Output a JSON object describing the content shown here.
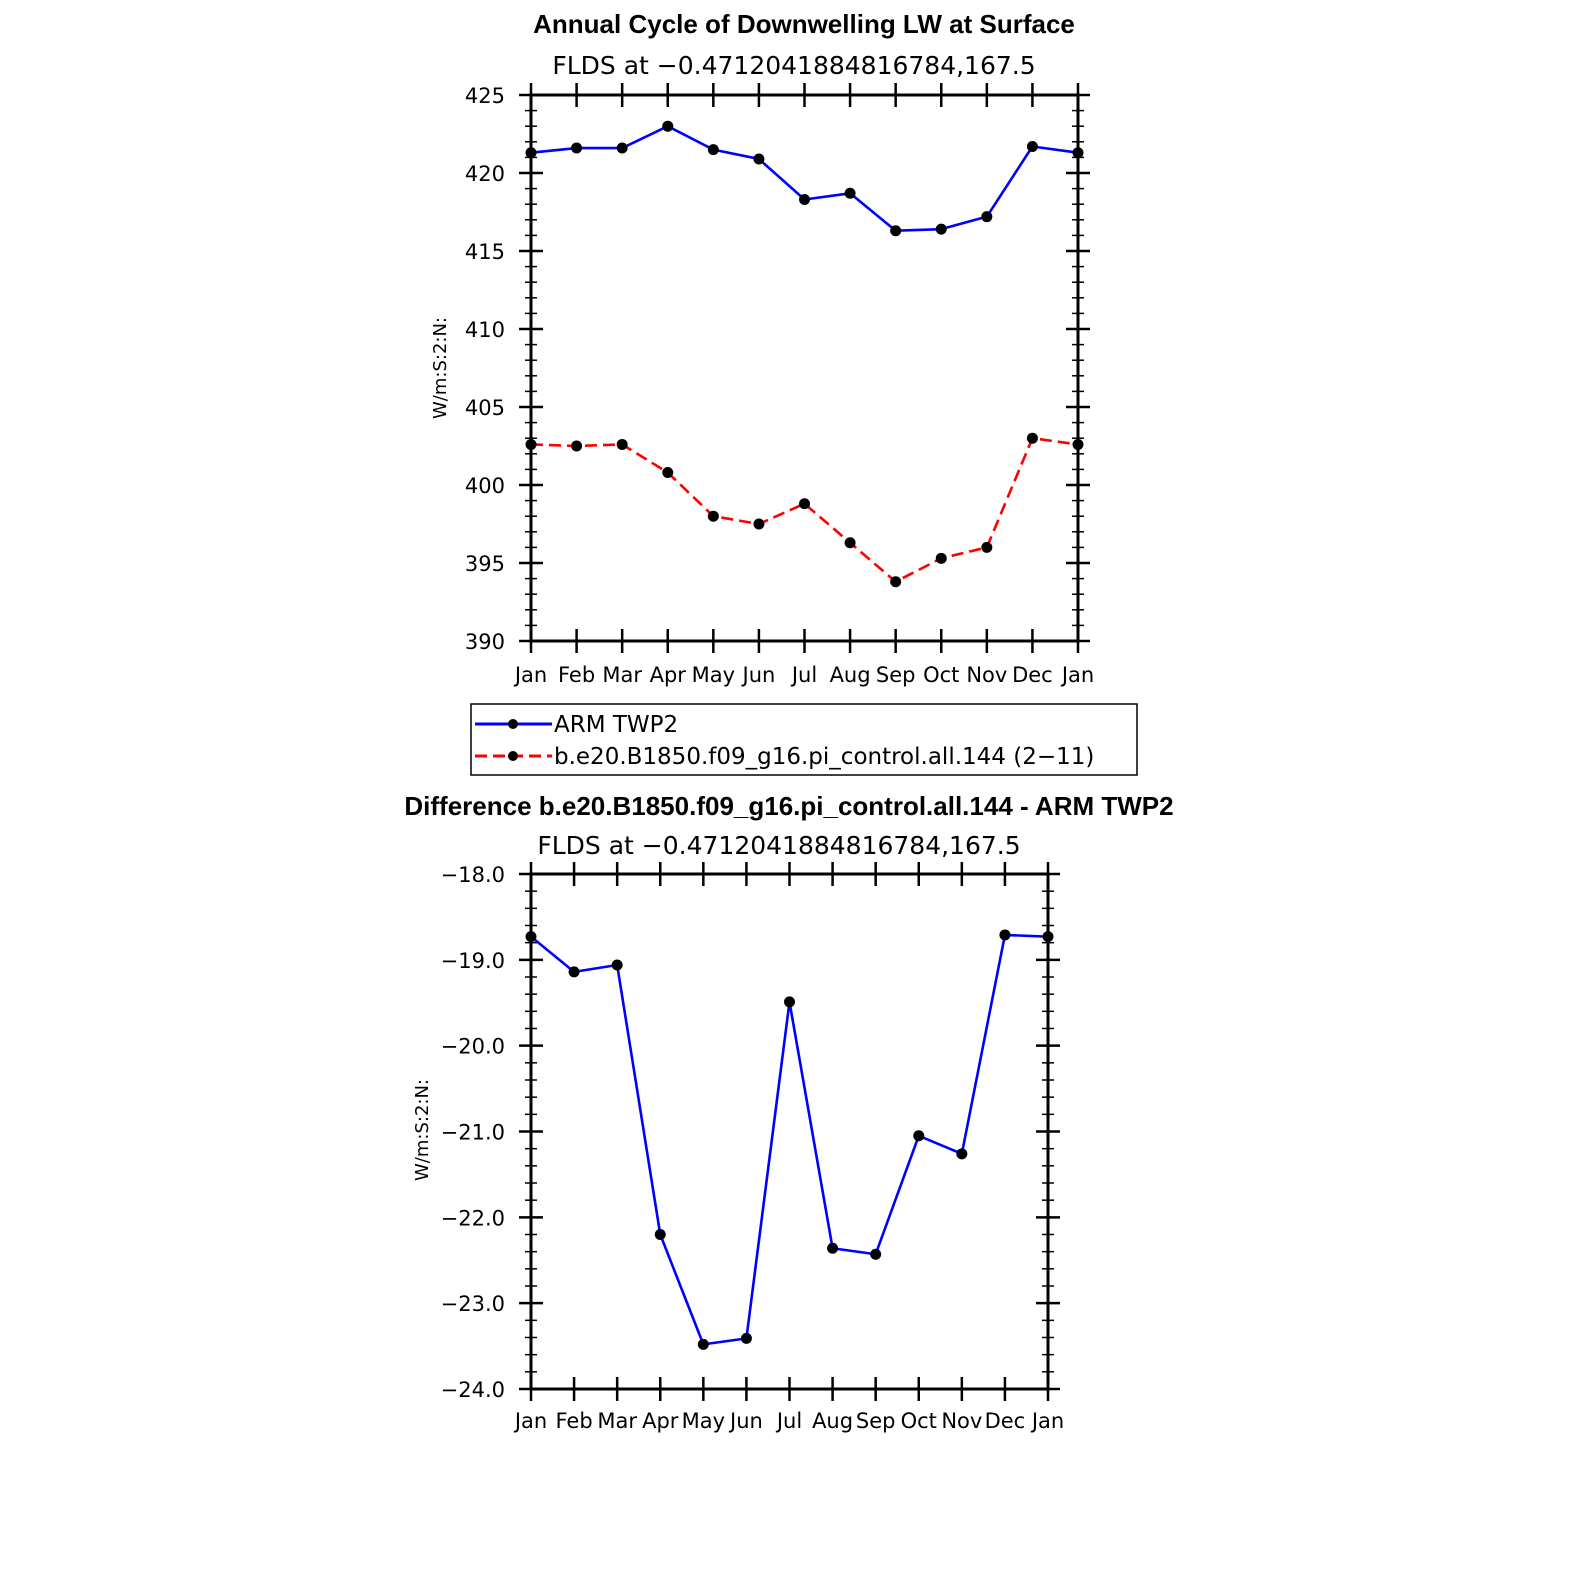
{
  "chart_data": [
    {
      "type": "line",
      "title": "Annual Cycle of Downwelling LW at Surface",
      "subtitle": "FLDS at −0.4712041884816784,167.5",
      "xlabel": "",
      "ylabel": "W/m:S:2:N:",
      "categories": [
        "Jan",
        "Feb",
        "Mar",
        "Apr",
        "May",
        "Jun",
        "Jul",
        "Aug",
        "Sep",
        "Oct",
        "Nov",
        "Dec",
        "Jan"
      ],
      "ylim": [
        390,
        425
      ],
      "yticks": [
        390,
        395,
        400,
        405,
        410,
        415,
        420,
        425
      ],
      "ytick_labels": [
        "390",
        "395",
        "400",
        "405",
        "410",
        "415",
        "420",
        "425"
      ],
      "grid": false,
      "legend_position": "bottom",
      "series": [
        {
          "name": "ARM TWP2",
          "color": "#0000ff",
          "style": "solid",
          "values": [
            421.3,
            421.6,
            421.6,
            423.0,
            421.5,
            420.9,
            418.3,
            418.7,
            416.3,
            416.4,
            417.2,
            421.7,
            421.3
          ]
        },
        {
          "name": "b.e20.B1850.f09_g16.pi_control.all.144 (2−11)",
          "color": "#ff0000",
          "style": "dashed",
          "values": [
            402.6,
            402.5,
            402.6,
            400.8,
            398.0,
            397.5,
            398.8,
            396.3,
            393.8,
            395.3,
            396.0,
            403.0,
            402.6
          ]
        }
      ]
    },
    {
      "type": "line",
      "title": "Difference b.e20.B1850.f09_g16.pi_control.all.144 - ARM TWP2",
      "subtitle": "FLDS at −0.4712041884816784,167.5",
      "xlabel": "",
      "ylabel": "W/m:S:2:N:",
      "categories": [
        "Jan",
        "Feb",
        "Mar",
        "Apr",
        "May",
        "Jun",
        "Jul",
        "Aug",
        "Sep",
        "Oct",
        "Nov",
        "Dec",
        "Jan"
      ],
      "ylim": [
        -24.0,
        -18.0
      ],
      "yticks": [
        -24,
        -23,
        -22,
        -21,
        -20,
        -19,
        -18
      ],
      "ytick_labels": [
        "−24.0",
        "−23.0",
        "−22.0",
        "−21.0",
        "−20.0",
        "−19.0",
        "−18.0"
      ],
      "grid": false,
      "series": [
        {
          "name": "Difference",
          "color": "#0000ff",
          "style": "solid",
          "values": [
            -18.73,
            -19.14,
            -19.06,
            -22.2,
            -23.48,
            -23.41,
            -19.49,
            -22.36,
            -22.43,
            -21.05,
            -21.26,
            -18.71,
            -18.73
          ]
        }
      ]
    }
  ]
}
